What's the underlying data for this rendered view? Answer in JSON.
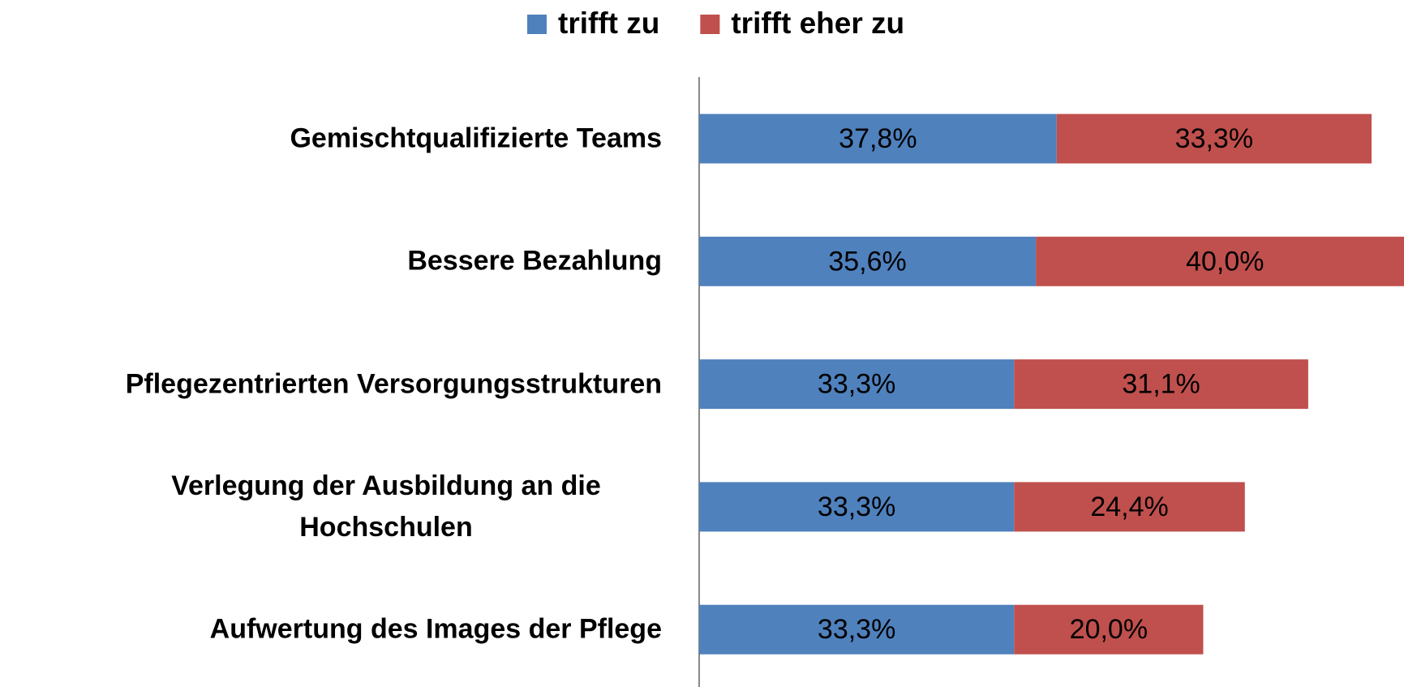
{
  "chart_data": {
    "type": "stacked-bar-horizontal",
    "categories": [
      "Gemischtqualifizierte Teams",
      "Bessere Bezahlung",
      "Pflegezentrierten Versorgungsstrukturen",
      "Verlegung der Ausbildung an die Hochschulen",
      "Aufwertung des Images der Pflege"
    ],
    "series": [
      {
        "name": "trifft zu",
        "color": "#4f81bd",
        "values": [
          37.8,
          35.6,
          33.3,
          33.3,
          33.3
        ],
        "value_labels": [
          "37,8%",
          "35,6%",
          "33,3%",
          "33,3%",
          "33,3%"
        ]
      },
      {
        "name": "trifft eher zu",
        "color": "#c0504d",
        "values": [
          33.3,
          40.0,
          31.1,
          24.4,
          20.0
        ],
        "value_labels": [
          "33,3%",
          "40,0%",
          "31,1%",
          "24,4%",
          "20,0%"
        ]
      }
    ],
    "legend": "top"
  }
}
